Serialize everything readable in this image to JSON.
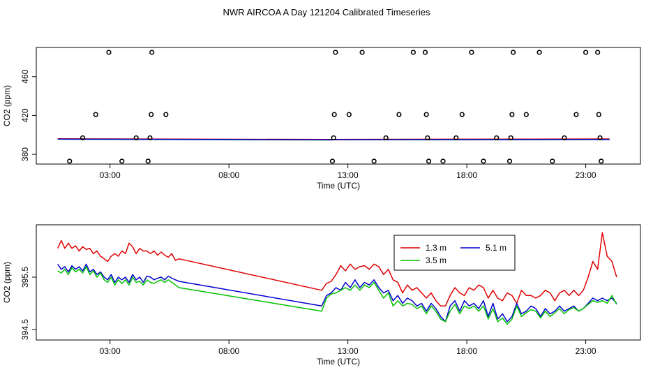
{
  "title": "NWR AIRCOA A  Day 121204  Calibrated Timeseries",
  "chart_data": [
    {
      "type": "scatter",
      "panel": "top",
      "xlabel": "Time (UTC)",
      "ylabel": "CO2 (ppm)",
      "xlim": [
        -0.1,
        25.3
      ],
      "ylim": [
        370,
        490
      ],
      "xticks": [
        3,
        8,
        13,
        18,
        23
      ],
      "xtick_labels": [
        "03:00",
        "08:00",
        "13:00",
        "18:00",
        "23:00"
      ],
      "yticks": [
        380,
        420,
        460
      ],
      "ytick_labels": [
        "380",
        "420",
        "460"
      ],
      "outliers": [
        {
          "x": 1.3,
          "y": 373
        },
        {
          "x": 1.85,
          "y": 397
        },
        {
          "x": 2.4,
          "y": 421
        },
        {
          "x": 2.95,
          "y": 485
        },
        {
          "x": 3.5,
          "y": 373
        },
        {
          "x": 4.1,
          "y": 397
        },
        {
          "x": 4.6,
          "y": 373
        },
        {
          "x": 4.68,
          "y": 397
        },
        {
          "x": 4.73,
          "y": 421
        },
        {
          "x": 4.76,
          "y": 485
        },
        {
          "x": 5.35,
          "y": 421
        },
        {
          "x": 12.35,
          "y": 373
        },
        {
          "x": 12.4,
          "y": 397
        },
        {
          "x": 12.43,
          "y": 421
        },
        {
          "x": 12.48,
          "y": 485
        },
        {
          "x": 13.05,
          "y": 421
        },
        {
          "x": 13.6,
          "y": 485
        },
        {
          "x": 14.1,
          "y": 373
        },
        {
          "x": 14.6,
          "y": 397
        },
        {
          "x": 15.15,
          "y": 421
        },
        {
          "x": 15.75,
          "y": 485
        },
        {
          "x": 16.25,
          "y": 485
        },
        {
          "x": 16.3,
          "y": 421
        },
        {
          "x": 16.35,
          "y": 397
        },
        {
          "x": 16.4,
          "y": 373
        },
        {
          "x": 17.0,
          "y": 373
        },
        {
          "x": 17.55,
          "y": 397
        },
        {
          "x": 17.8,
          "y": 421
        },
        {
          "x": 18.2,
          "y": 485
        },
        {
          "x": 18.7,
          "y": 373
        },
        {
          "x": 19.25,
          "y": 397
        },
        {
          "x": 19.8,
          "y": 373
        },
        {
          "x": 19.85,
          "y": 397
        },
        {
          "x": 19.9,
          "y": 421
        },
        {
          "x": 19.95,
          "y": 485
        },
        {
          "x": 20.5,
          "y": 421
        },
        {
          "x": 21.05,
          "y": 485
        },
        {
          "x": 21.6,
          "y": 373
        },
        {
          "x": 22.1,
          "y": 397
        },
        {
          "x": 22.6,
          "y": 421
        },
        {
          "x": 23.0,
          "y": 485
        },
        {
          "x": 23.5,
          "y": 485
        },
        {
          "x": 23.55,
          "y": 421
        },
        {
          "x": 23.6,
          "y": 397
        },
        {
          "x": 23.65,
          "y": 373
        }
      ],
      "baseline_series": [
        {
          "name": "1.3 m",
          "color": "#e00000",
          "x": [
            0.8,
            12.3,
            12.4,
            24.0
          ],
          "y": [
            396.0,
            395.3,
            395.4,
            395.9
          ]
        },
        {
          "name": "3.5 m",
          "color": "#00c000",
          "x": [
            0.8,
            12.3,
            12.4,
            24.0
          ],
          "y": [
            395.6,
            394.8,
            395.0,
            395.2
          ]
        },
        {
          "name": "5.1 m",
          "color": "#0000d0",
          "x": [
            0.8,
            12.3,
            12.4,
            24.0
          ],
          "y": [
            395.7,
            395.0,
            395.1,
            395.3
          ]
        }
      ]
    },
    {
      "type": "line",
      "panel": "bottom",
      "xlabel": "Time (UTC)",
      "ylabel": "CO2 (ppm)",
      "xlim": [
        -0.1,
        25.3
      ],
      "ylim": [
        394.3,
        396.5
      ],
      "xticks": [
        3,
        8,
        13,
        18,
        23
      ],
      "xtick_labels": [
        "03:00",
        "08:00",
        "13:00",
        "18:00",
        "23:00"
      ],
      "yticks": [
        394.5,
        395.5
      ],
      "ytick_labels": [
        "394.5",
        "395.5"
      ],
      "legend": {
        "position": "top-center",
        "entries": [
          "1.3 m",
          "5.1 m",
          "3.5 m"
        ]
      },
      "series": [
        {
          "name": "1.3 m",
          "color": "#e00000",
          "x": [
            0.8,
            0.95,
            1.1,
            1.25,
            1.4,
            1.55,
            1.7,
            1.85,
            2.0,
            2.15,
            2.3,
            2.45,
            2.6,
            2.75,
            2.9,
            3.05,
            3.2,
            3.35,
            3.5,
            3.65,
            3.8,
            3.95,
            4.1,
            4.25,
            4.4,
            4.55,
            4.7,
            4.85,
            5.0,
            5.15,
            5.3,
            5.45,
            5.6,
            5.75,
            5.9,
            11.9,
            12.1,
            12.3,
            12.5,
            12.7,
            12.9,
            13.1,
            13.3,
            13.5,
            13.7,
            13.9,
            14.1,
            14.3,
            14.5,
            14.7,
            14.9,
            15.1,
            15.3,
            15.5,
            15.7,
            15.9,
            16.1,
            16.3,
            16.5,
            16.7,
            16.9,
            17.1,
            17.3,
            17.5,
            17.7,
            17.9,
            18.1,
            18.3,
            18.5,
            18.7,
            18.9,
            19.1,
            19.3,
            19.5,
            19.7,
            19.9,
            20.1,
            20.3,
            20.5,
            20.7,
            20.9,
            21.1,
            21.3,
            21.5,
            21.7,
            21.9,
            22.1,
            22.3,
            22.5,
            22.7,
            22.9,
            23.1,
            23.3,
            23.5,
            23.7,
            23.9,
            24.1,
            24.3
          ],
          "y": [
            396.05,
            396.2,
            396.05,
            396.15,
            396.05,
            396.1,
            396.0,
            396.08,
            396.03,
            396.05,
            395.95,
            396.0,
            395.9,
            395.85,
            395.8,
            395.9,
            395.95,
            395.9,
            396.0,
            395.95,
            396.15,
            396.08,
            395.95,
            396.05,
            396.0,
            396.0,
            395.95,
            396.0,
            395.92,
            395.98,
            395.92,
            395.88,
            395.95,
            395.82,
            395.85,
            395.25,
            395.38,
            395.42,
            395.55,
            395.72,
            395.62,
            395.75,
            395.65,
            395.7,
            395.72,
            395.65,
            395.75,
            395.7,
            395.55,
            395.65,
            395.45,
            395.4,
            395.2,
            395.35,
            395.25,
            395.3,
            395.2,
            395.1,
            395.2,
            395.05,
            394.95,
            394.95,
            395.15,
            395.3,
            395.2,
            395.15,
            395.3,
            395.25,
            395.35,
            395.3,
            395.1,
            395.25,
            395.1,
            395.05,
            395.2,
            395.15,
            395.0,
            395.25,
            395.15,
            395.15,
            395.1,
            395.15,
            395.25,
            395.2,
            395.05,
            395.2,
            395.25,
            395.15,
            395.25,
            395.15,
            395.25,
            395.5,
            395.8,
            395.65,
            396.35,
            395.9,
            395.8,
            395.5
          ]
        },
        {
          "name": "5.1 m",
          "color": "#0000d0",
          "x": [
            0.8,
            0.95,
            1.1,
            1.25,
            1.4,
            1.55,
            1.7,
            1.85,
            2.0,
            2.15,
            2.3,
            2.45,
            2.6,
            2.75,
            2.9,
            3.05,
            3.2,
            3.35,
            3.5,
            3.65,
            3.8,
            3.95,
            4.1,
            4.25,
            4.4,
            4.55,
            4.7,
            4.85,
            5.0,
            5.15,
            5.3,
            5.45,
            5.6,
            5.75,
            5.9,
            11.9,
            12.1,
            12.3,
            12.5,
            12.7,
            12.9,
            13.1,
            13.3,
            13.5,
            13.7,
            13.9,
            14.1,
            14.3,
            14.5,
            14.7,
            14.9,
            15.1,
            15.3,
            15.5,
            15.7,
            15.9,
            16.1,
            16.3,
            16.5,
            16.7,
            16.9,
            17.1,
            17.3,
            17.5,
            17.7,
            17.9,
            18.1,
            18.3,
            18.5,
            18.7,
            18.9,
            19.1,
            19.3,
            19.5,
            19.7,
            19.9,
            20.1,
            20.3,
            20.5,
            20.7,
            20.9,
            21.1,
            21.3,
            21.5,
            21.7,
            21.9,
            22.1,
            22.3,
            22.5,
            22.7,
            22.9,
            23.1,
            23.3,
            23.5,
            23.7,
            23.9,
            24.1,
            24.3
          ],
          "y": [
            395.75,
            395.65,
            395.7,
            395.6,
            395.72,
            395.65,
            395.7,
            395.62,
            395.75,
            395.6,
            395.65,
            395.55,
            395.6,
            395.5,
            395.45,
            395.55,
            395.4,
            395.5,
            395.45,
            395.5,
            395.4,
            395.55,
            395.45,
            395.5,
            395.4,
            395.52,
            395.5,
            395.45,
            395.48,
            395.5,
            395.45,
            395.52,
            395.48,
            395.45,
            395.42,
            394.95,
            395.15,
            395.2,
            395.3,
            395.25,
            395.4,
            395.3,
            395.45,
            395.3,
            395.4,
            395.35,
            395.45,
            395.3,
            395.2,
            395.25,
            395.05,
            395.15,
            395.0,
            395.1,
            395.05,
            394.95,
            395.0,
            394.85,
            395.0,
            394.9,
            394.75,
            394.65,
            394.95,
            395.05,
            394.85,
            395.05,
            394.95,
            395.0,
            394.9,
            395.05,
            394.75,
            395.0,
            394.7,
            394.8,
            394.65,
            394.75,
            395.0,
            394.8,
            394.85,
            394.95,
            394.9,
            394.75,
            394.9,
            394.8,
            394.85,
            394.95,
            394.85,
            394.9,
            394.95,
            394.85,
            394.9,
            395.0,
            395.1,
            395.05,
            395.1,
            395.05,
            395.1,
            395.0
          ]
        },
        {
          "name": "3.5 m",
          "color": "#00c000",
          "x": [
            0.8,
            0.95,
            1.1,
            1.25,
            1.4,
            1.55,
            1.7,
            1.85,
            2.0,
            2.15,
            2.3,
            2.45,
            2.6,
            2.75,
            2.9,
            3.05,
            3.2,
            3.35,
            3.5,
            3.65,
            3.8,
            3.95,
            4.1,
            4.25,
            4.4,
            4.55,
            4.7,
            4.85,
            5.0,
            5.15,
            5.3,
            5.45,
            5.6,
            5.75,
            5.9,
            11.9,
            12.1,
            12.3,
            12.5,
            12.7,
            12.9,
            13.1,
            13.3,
            13.5,
            13.7,
            13.9,
            14.1,
            14.3,
            14.5,
            14.7,
            14.9,
            15.1,
            15.3,
            15.5,
            15.7,
            15.9,
            16.1,
            16.3,
            16.5,
            16.7,
            16.9,
            17.1,
            17.3,
            17.5,
            17.7,
            17.9,
            18.1,
            18.3,
            18.5,
            18.7,
            18.9,
            19.1,
            19.3,
            19.5,
            19.7,
            19.9,
            20.1,
            20.3,
            20.5,
            20.7,
            20.9,
            21.1,
            21.3,
            21.5,
            21.7,
            21.9,
            22.1,
            22.3,
            22.5,
            22.7,
            22.9,
            23.1,
            23.3,
            23.5,
            23.7,
            23.9,
            24.1,
            24.3
          ],
          "y": [
            395.62,
            395.58,
            395.65,
            395.55,
            395.68,
            395.6,
            395.65,
            395.58,
            395.7,
            395.55,
            395.62,
            395.5,
            395.58,
            395.45,
            395.4,
            395.5,
            395.35,
            395.45,
            395.38,
            395.45,
            395.35,
            395.5,
            395.4,
            395.42,
            395.35,
            395.45,
            395.4,
            395.38,
            395.42,
            395.45,
            395.4,
            395.45,
            395.4,
            395.35,
            395.3,
            394.85,
            395.1,
            395.18,
            395.2,
            395.25,
            395.3,
            395.25,
            395.35,
            395.25,
            395.35,
            395.3,
            395.4,
            395.25,
            395.1,
            395.2,
            394.95,
            395.05,
            394.95,
            395.0,
            394.98,
            394.9,
            394.95,
            394.8,
            394.95,
            394.85,
            394.7,
            394.65,
            394.85,
            394.98,
            394.8,
            394.95,
            394.9,
            394.95,
            394.85,
            394.95,
            394.7,
            394.9,
            394.65,
            394.72,
            394.6,
            394.7,
            394.95,
            394.75,
            394.82,
            394.88,
            394.85,
            394.72,
            394.85,
            394.75,
            394.82,
            394.9,
            394.8,
            394.88,
            394.92,
            394.85,
            394.9,
            394.98,
            395.05,
            395.02,
            395.05,
            395.0,
            395.15,
            394.98
          ]
        }
      ]
    }
  ]
}
